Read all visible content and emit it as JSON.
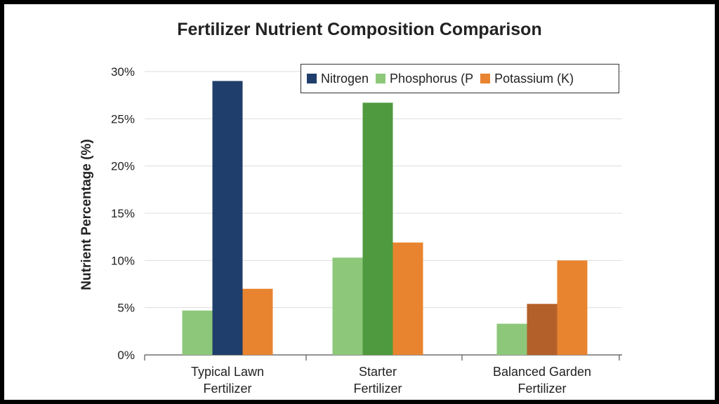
{
  "chart_data": {
    "type": "bar",
    "title": "Fertilizer Nutrient Composition Comparison",
    "ylabel": "Nutrient Percentage (%)",
    "xlabel": "",
    "ylim": [
      0,
      30
    ],
    "y_ticks": [
      "0%",
      "5%",
      "10%",
      "15%",
      "20%",
      "25%",
      "30%"
    ],
    "grid": true,
    "legend_position": "top-right",
    "categories": [
      "Typical Lawn\nFertilizer",
      "Starter\nFertilizer",
      "Balanced Garden\nFertilizer"
    ],
    "series": [
      {
        "name": "Phosphorus (P",
        "color": "#8dc87a",
        "values": [
          4.7,
          10.3,
          3.3
        ]
      },
      {
        "name": "Nitrogen",
        "color": "#1f3e6b",
        "values": [
          29.0,
          26.7,
          5.4
        ]
      },
      {
        "name": "Potassium (K)",
        "color": "#e8842f",
        "values": [
          7.0,
          11.9,
          10.0
        ]
      }
    ],
    "bar_colors_override": [
      [
        null,
        null,
        null
      ],
      [
        null,
        "#4f9a3e",
        "#b4602a"
      ],
      [
        null,
        null,
        null
      ]
    ]
  },
  "legend": {
    "items": [
      {
        "label": "Nitrogen",
        "color": "#1f3e6b"
      },
      {
        "label": "Phosphorus (P",
        "color": "#8dc87a"
      },
      {
        "label": "Potassium (K)",
        "color": "#e8842f"
      }
    ]
  }
}
